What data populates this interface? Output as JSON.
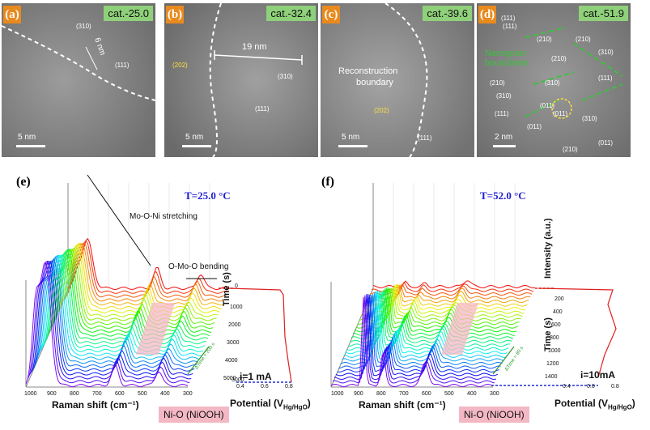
{
  "panels": [
    {
      "label": "(a)",
      "cat": "cat.-25.0",
      "ann": [
        "(310)",
        "6 nm",
        "(111)"
      ],
      "scale": "5 nm"
    },
    {
      "label": "(b)",
      "cat": "cat.-32.4",
      "ann": [
        "(202)",
        "19 nm",
        "(310)",
        "(111)"
      ],
      "scale": "5 nm"
    },
    {
      "label": "(c)",
      "cat": "cat.-39.6",
      "ann": [
        "Reconstruction",
        "boundary",
        "(202)",
        "(111)"
      ],
      "scale": "5 nm"
    },
    {
      "label": "(d)",
      "cat": "cat.-51.9",
      "ann": [
        "(111)",
        "(111)",
        "(210)",
        "(210)",
        "(210)",
        "(310)",
        "(111)",
        "(210)",
        "(310)",
        "(310)",
        "(111)",
        "(011)",
        "(011)",
        "(011)",
        "(310)",
        "(210)",
        "(011)"
      ],
      "green": [
        "Nanograin",
        "boundaries"
      ],
      "scale": "2 nm"
    }
  ],
  "raman": [
    {
      "label": "(e)",
      "temp": "T=25.0 °C",
      "peak1": "Mo-O-Ni stretching",
      "peak2": "O-Mo-O bending",
      "time_title": "Time (s)",
      "time_ticks": [
        "1000",
        "2000",
        "3000",
        "4000",
        "5000"
      ],
      "time_top": "0",
      "time_bottom": "3000",
      "x_ticks": [
        "1000",
        "900",
        "800",
        "700",
        "600",
        "500",
        "400",
        "300"
      ],
      "xlabel": "Raman shift (cm⁻¹)",
      "potential": "Potential (V",
      "potential_sub": "Hg/HgO",
      "pot_ticks": [
        "0.4",
        "0.6",
        "0.8"
      ],
      "current": "i=1 mA",
      "niooh": "Ni-O (NiOOH)",
      "interval": "ΔTime = 200 s"
    },
    {
      "label": "(f)",
      "temp": "T=52.0 °C",
      "intensity": "Intensity (a.u.)",
      "time_title": "Time (s)",
      "time_ticks": [
        "200",
        "400",
        "600",
        "800",
        "1000",
        "1200",
        "1400"
      ],
      "x_ticks": [
        "1000",
        "900",
        "800",
        "700",
        "600",
        "500",
        "400",
        "300"
      ],
      "xlabel": "Raman shift (cm⁻¹)",
      "potential": "Potential (V",
      "potential_sub": "Hg/HgO",
      "pot_ticks": [
        "0.4",
        "0.6",
        "0.8"
      ],
      "current": "i=10mA",
      "niooh": "Ni-O (NiOOH)",
      "interval": "ΔTime = 80 s"
    }
  ]
}
